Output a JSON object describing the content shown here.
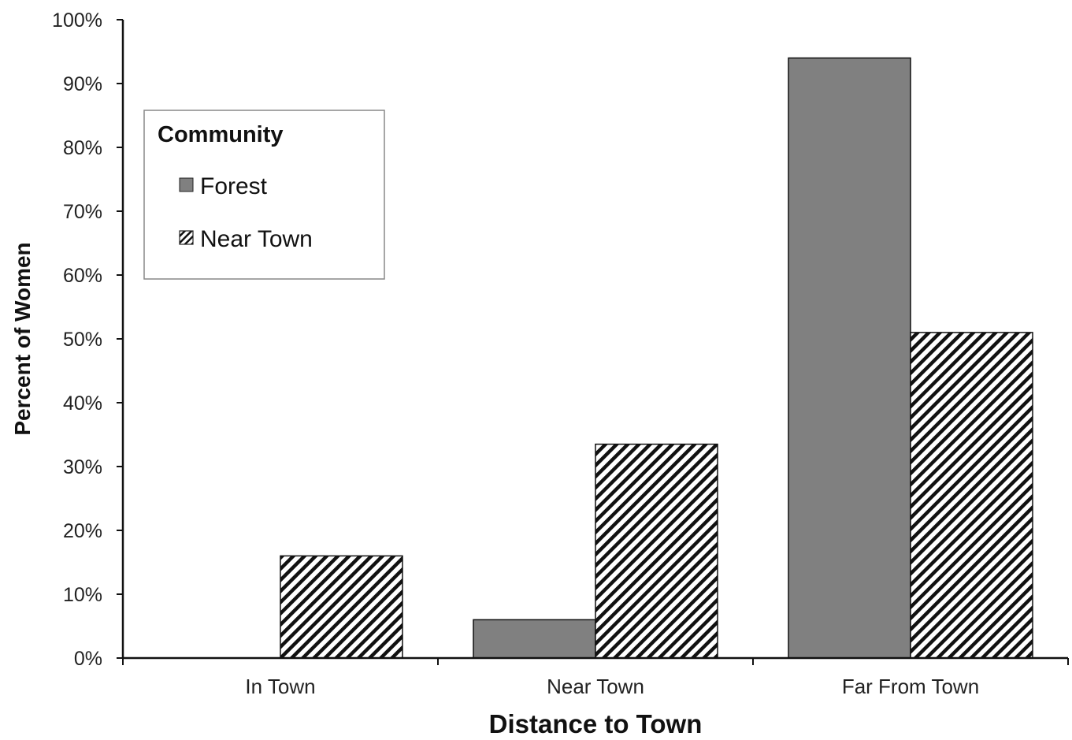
{
  "chart_data": {
    "type": "bar",
    "categories": [
      "In Town",
      "Near Town",
      "Far From Town"
    ],
    "series": [
      {
        "name": "Forest",
        "values": [
          0,
          6,
          94
        ],
        "color": "#808080",
        "pattern": "solid"
      },
      {
        "name": "Near Town",
        "values": [
          16,
          33.5,
          51
        ],
        "color": "#ffffff",
        "pattern": "diagonal-hatch"
      }
    ],
    "xlabel": "Distance to Town",
    "ylabel": "Percent of Women",
    "ylim": [
      0,
      100
    ],
    "yticks": [
      "0%",
      "10%",
      "20%",
      "30%",
      "40%",
      "50%",
      "60%",
      "70%",
      "80%",
      "90%",
      "100%"
    ],
    "grid": false,
    "legend": {
      "title": "Community",
      "position": "top-left"
    }
  }
}
